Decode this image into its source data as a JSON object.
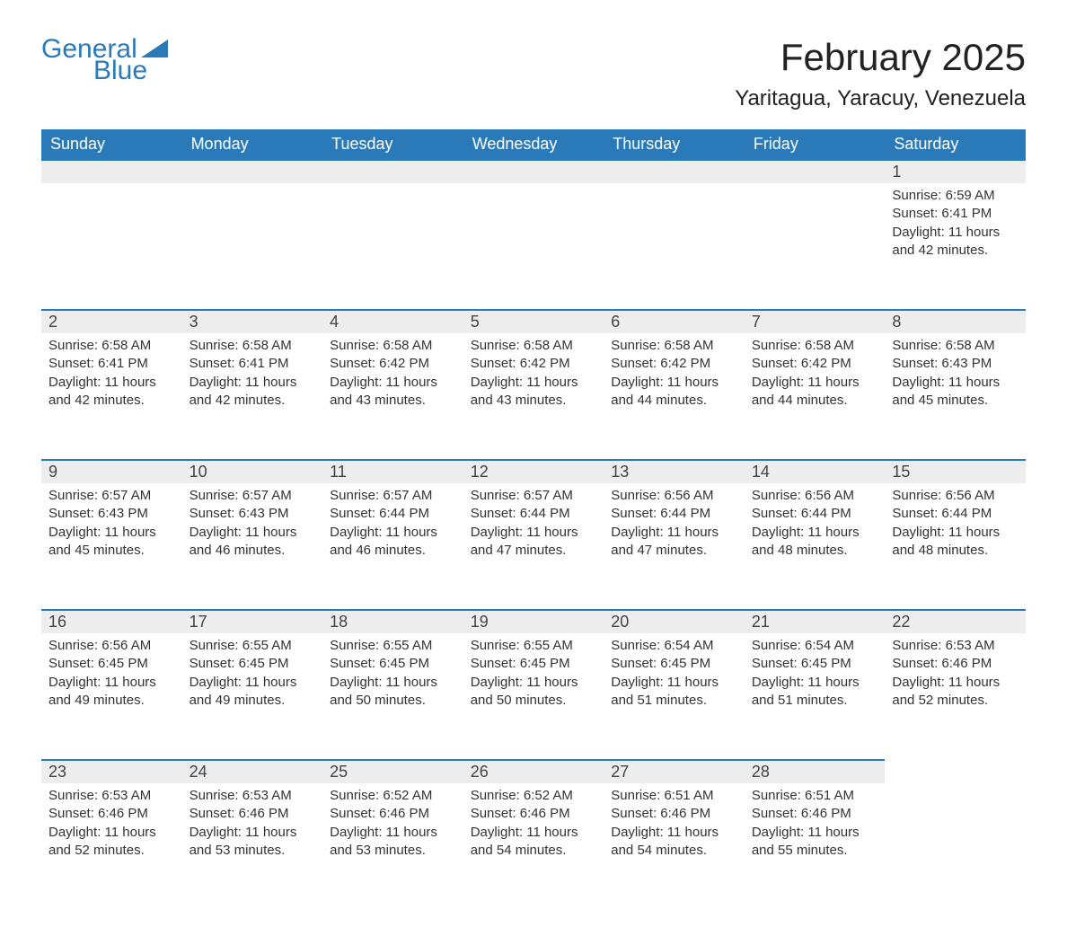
{
  "logo": {
    "general": "General",
    "blue": "Blue"
  },
  "title": "February 2025",
  "location": "Yaritagua, Yaracuy, Venezuela",
  "colors": {
    "accent": "#2a7ab9",
    "header_bg": "#2a7ab9",
    "header_text": "#ffffff",
    "daynum_bg": "#ededed",
    "text": "#333333",
    "page_bg": "#ffffff"
  },
  "typography": {
    "title_fontsize": 42,
    "location_fontsize": 24,
    "header_fontsize": 18,
    "daynum_fontsize": 18,
    "body_fontsize": 15,
    "font_family": "Segoe UI"
  },
  "columns": [
    "Sunday",
    "Monday",
    "Tuesday",
    "Wednesday",
    "Thursday",
    "Friday",
    "Saturday"
  ],
  "weeks": [
    [
      null,
      null,
      null,
      null,
      null,
      null,
      {
        "n": "1",
        "sunrise": "Sunrise: 6:59 AM",
        "sunset": "Sunset: 6:41 PM",
        "daylight": "Daylight: 11 hours and 42 minutes."
      }
    ],
    [
      {
        "n": "2",
        "sunrise": "Sunrise: 6:58 AM",
        "sunset": "Sunset: 6:41 PM",
        "daylight": "Daylight: 11 hours and 42 minutes."
      },
      {
        "n": "3",
        "sunrise": "Sunrise: 6:58 AM",
        "sunset": "Sunset: 6:41 PM",
        "daylight": "Daylight: 11 hours and 42 minutes."
      },
      {
        "n": "4",
        "sunrise": "Sunrise: 6:58 AM",
        "sunset": "Sunset: 6:42 PM",
        "daylight": "Daylight: 11 hours and 43 minutes."
      },
      {
        "n": "5",
        "sunrise": "Sunrise: 6:58 AM",
        "sunset": "Sunset: 6:42 PM",
        "daylight": "Daylight: 11 hours and 43 minutes."
      },
      {
        "n": "6",
        "sunrise": "Sunrise: 6:58 AM",
        "sunset": "Sunset: 6:42 PM",
        "daylight": "Daylight: 11 hours and 44 minutes."
      },
      {
        "n": "7",
        "sunrise": "Sunrise: 6:58 AM",
        "sunset": "Sunset: 6:42 PM",
        "daylight": "Daylight: 11 hours and 44 minutes."
      },
      {
        "n": "8",
        "sunrise": "Sunrise: 6:58 AM",
        "sunset": "Sunset: 6:43 PM",
        "daylight": "Daylight: 11 hours and 45 minutes."
      }
    ],
    [
      {
        "n": "9",
        "sunrise": "Sunrise: 6:57 AM",
        "sunset": "Sunset: 6:43 PM",
        "daylight": "Daylight: 11 hours and 45 minutes."
      },
      {
        "n": "10",
        "sunrise": "Sunrise: 6:57 AM",
        "sunset": "Sunset: 6:43 PM",
        "daylight": "Daylight: 11 hours and 46 minutes."
      },
      {
        "n": "11",
        "sunrise": "Sunrise: 6:57 AM",
        "sunset": "Sunset: 6:44 PM",
        "daylight": "Daylight: 11 hours and 46 minutes."
      },
      {
        "n": "12",
        "sunrise": "Sunrise: 6:57 AM",
        "sunset": "Sunset: 6:44 PM",
        "daylight": "Daylight: 11 hours and 47 minutes."
      },
      {
        "n": "13",
        "sunrise": "Sunrise: 6:56 AM",
        "sunset": "Sunset: 6:44 PM",
        "daylight": "Daylight: 11 hours and 47 minutes."
      },
      {
        "n": "14",
        "sunrise": "Sunrise: 6:56 AM",
        "sunset": "Sunset: 6:44 PM",
        "daylight": "Daylight: 11 hours and 48 minutes."
      },
      {
        "n": "15",
        "sunrise": "Sunrise: 6:56 AM",
        "sunset": "Sunset: 6:44 PM",
        "daylight": "Daylight: 11 hours and 48 minutes."
      }
    ],
    [
      {
        "n": "16",
        "sunrise": "Sunrise: 6:56 AM",
        "sunset": "Sunset: 6:45 PM",
        "daylight": "Daylight: 11 hours and 49 minutes."
      },
      {
        "n": "17",
        "sunrise": "Sunrise: 6:55 AM",
        "sunset": "Sunset: 6:45 PM",
        "daylight": "Daylight: 11 hours and 49 minutes."
      },
      {
        "n": "18",
        "sunrise": "Sunrise: 6:55 AM",
        "sunset": "Sunset: 6:45 PM",
        "daylight": "Daylight: 11 hours and 50 minutes."
      },
      {
        "n": "19",
        "sunrise": "Sunrise: 6:55 AM",
        "sunset": "Sunset: 6:45 PM",
        "daylight": "Daylight: 11 hours and 50 minutes."
      },
      {
        "n": "20",
        "sunrise": "Sunrise: 6:54 AM",
        "sunset": "Sunset: 6:45 PM",
        "daylight": "Daylight: 11 hours and 51 minutes."
      },
      {
        "n": "21",
        "sunrise": "Sunrise: 6:54 AM",
        "sunset": "Sunset: 6:45 PM",
        "daylight": "Daylight: 11 hours and 51 minutes."
      },
      {
        "n": "22",
        "sunrise": "Sunrise: 6:53 AM",
        "sunset": "Sunset: 6:46 PM",
        "daylight": "Daylight: 11 hours and 52 minutes."
      }
    ],
    [
      {
        "n": "23",
        "sunrise": "Sunrise: 6:53 AM",
        "sunset": "Sunset: 6:46 PM",
        "daylight": "Daylight: 11 hours and 52 minutes."
      },
      {
        "n": "24",
        "sunrise": "Sunrise: 6:53 AM",
        "sunset": "Sunset: 6:46 PM",
        "daylight": "Daylight: 11 hours and 53 minutes."
      },
      {
        "n": "25",
        "sunrise": "Sunrise: 6:52 AM",
        "sunset": "Sunset: 6:46 PM",
        "daylight": "Daylight: 11 hours and 53 minutes."
      },
      {
        "n": "26",
        "sunrise": "Sunrise: 6:52 AM",
        "sunset": "Sunset: 6:46 PM",
        "daylight": "Daylight: 11 hours and 54 minutes."
      },
      {
        "n": "27",
        "sunrise": "Sunrise: 6:51 AM",
        "sunset": "Sunset: 6:46 PM",
        "daylight": "Daylight: 11 hours and 54 minutes."
      },
      {
        "n": "28",
        "sunrise": "Sunrise: 6:51 AM",
        "sunset": "Sunset: 6:46 PM",
        "daylight": "Daylight: 11 hours and 55 minutes."
      },
      null
    ]
  ]
}
